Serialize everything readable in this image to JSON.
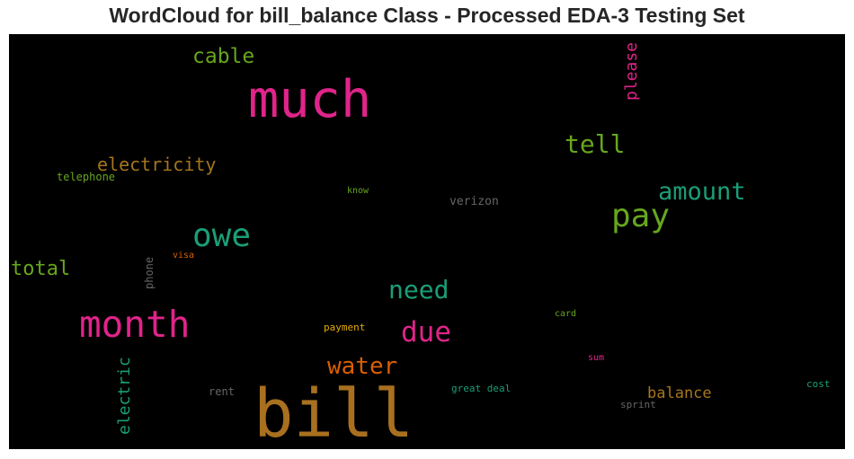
{
  "chart_data": {
    "type": "wordcloud",
    "title": "WordCloud for bill_balance Class - Processed EDA-3 Testing Set",
    "background": "#000000",
    "words": [
      {
        "text": "bill",
        "weight": 1.0,
        "color": "#a8701f",
        "orientation": "horizontal"
      },
      {
        "text": "much",
        "weight": 0.83,
        "color": "#e0248a",
        "orientation": "horizontal"
      },
      {
        "text": "month",
        "weight": 0.65,
        "color": "#e0248a",
        "orientation": "horizontal"
      },
      {
        "text": "owe",
        "weight": 0.58,
        "color": "#1b9e77",
        "orientation": "horizontal"
      },
      {
        "text": "pay",
        "weight": 0.58,
        "color": "#66a61e",
        "orientation": "horizontal"
      },
      {
        "text": "due",
        "weight": 0.52,
        "color": "#e0248a",
        "orientation": "horizontal"
      },
      {
        "text": "tell",
        "weight": 0.48,
        "color": "#66a61e",
        "orientation": "horizontal"
      },
      {
        "text": "need",
        "weight": 0.48,
        "color": "#1b9e77",
        "orientation": "horizontal"
      },
      {
        "text": "amount",
        "weight": 0.46,
        "color": "#1b9e77",
        "orientation": "horizontal"
      },
      {
        "text": "water",
        "weight": 0.44,
        "color": "#d95f02",
        "orientation": "horizontal"
      },
      {
        "text": "cable",
        "weight": 0.4,
        "color": "#66a61e",
        "orientation": "horizontal"
      },
      {
        "text": "total",
        "weight": 0.38,
        "color": "#66a61e",
        "orientation": "horizontal"
      },
      {
        "text": "electricity",
        "weight": 0.34,
        "color": "#a6761d",
        "orientation": "horizontal"
      },
      {
        "text": "electric",
        "weight": 0.3,
        "color": "#1b9e77",
        "orientation": "vertical"
      },
      {
        "text": "please",
        "weight": 0.3,
        "color": "#e0248a",
        "orientation": "vertical"
      },
      {
        "text": "balance",
        "weight": 0.28,
        "color": "#a6761d",
        "orientation": "horizontal"
      },
      {
        "text": "verizon",
        "weight": 0.2,
        "color": "#666666",
        "orientation": "horizontal"
      },
      {
        "text": "rent",
        "weight": 0.17,
        "color": "#666666",
        "orientation": "horizontal"
      },
      {
        "text": "phone",
        "weight": 0.16,
        "color": "#666666",
        "orientation": "vertical"
      },
      {
        "text": "telephone",
        "weight": 0.16,
        "color": "#66a61e",
        "orientation": "horizontal"
      },
      {
        "text": "sprint",
        "weight": 0.14,
        "color": "#666666",
        "orientation": "horizontal"
      },
      {
        "text": "great deal",
        "weight": 0.13,
        "color": "#1b9e77",
        "orientation": "horizontal"
      },
      {
        "text": "cost",
        "weight": 0.13,
        "color": "#1b9e77",
        "orientation": "horizontal"
      },
      {
        "text": "payment",
        "weight": 0.13,
        "color": "#e6ab02",
        "orientation": "horizontal"
      },
      {
        "text": "card",
        "weight": 0.12,
        "color": "#66a61e",
        "orientation": "horizontal"
      },
      {
        "text": "sum",
        "weight": 0.12,
        "color": "#e0248a",
        "orientation": "horizontal"
      },
      {
        "text": "visa",
        "weight": 0.12,
        "color": "#d95f02",
        "orientation": "horizontal"
      },
      {
        "text": "know",
        "weight": 0.11,
        "color": "#66a61e",
        "orientation": "horizontal"
      }
    ]
  }
}
